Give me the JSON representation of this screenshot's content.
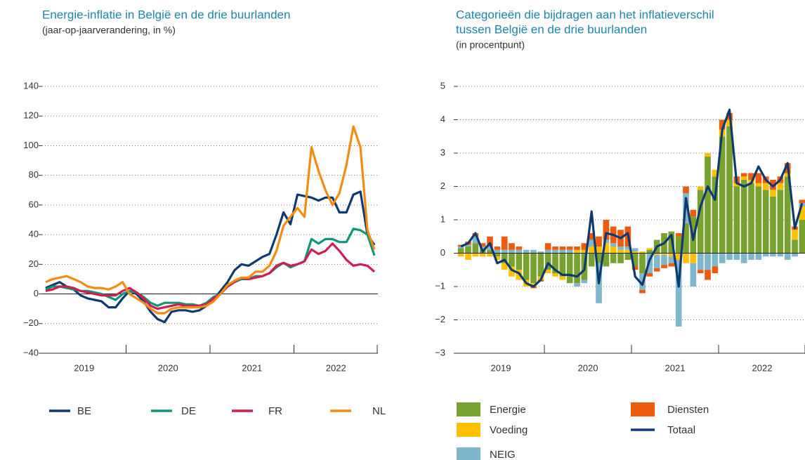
{
  "chart_data": [
    {
      "type": "line",
      "title": [
        "Energie-inflatie in België en de drie buurlanden"
      ],
      "subtitle": "(jaar-op-jaarverandering, in %)",
      "categories": [
        null,
        null,
        null,
        null,
        null,
        null,
        "2019",
        null,
        null,
        null,
        null,
        null,
        null,
        null,
        null,
        null,
        null,
        null,
        "2020",
        null,
        null,
        null,
        null,
        null,
        null,
        null,
        null,
        null,
        null,
        null,
        "2021",
        null,
        null,
        null,
        null,
        null,
        null,
        null,
        null,
        null,
        null,
        null,
        "2022",
        null,
        null,
        null,
        null,
        null
      ],
      "series": [
        {
          "name": "BE",
          "color": "#0e3a70",
          "values": [
            4,
            6,
            8,
            5,
            3,
            -1,
            -3,
            -4,
            -5,
            -9,
            -9,
            -3,
            2,
            0,
            -5,
            -12,
            -17,
            -19,
            -12,
            -11,
            -11,
            -12,
            -11,
            -8,
            -4,
            2,
            8,
            16,
            20,
            19,
            22,
            25,
            27,
            40,
            55,
            47,
            67,
            66,
            65,
            63,
            65,
            65,
            55,
            55,
            67,
            69,
            40,
            33
          ]
        },
        {
          "name": "DE",
          "color": "#109579",
          "values": [
            3,
            5,
            5,
            4,
            3,
            2,
            2,
            1,
            0,
            -2,
            -4,
            0,
            2,
            1,
            -2,
            -6,
            -8,
            -6,
            -6,
            -6,
            -7,
            -7,
            -8,
            -6,
            -2,
            0,
            5,
            8,
            10,
            10,
            12,
            12,
            14,
            18,
            21,
            18,
            20,
            22,
            37,
            34,
            37,
            37,
            35,
            35,
            44,
            43,
            40,
            26
          ]
        },
        {
          "name": "FR",
          "color": "#d01e4f",
          "values": [
            2,
            3,
            5,
            5,
            4,
            2,
            1,
            0,
            -1,
            -1,
            -1,
            2,
            4,
            1,
            -3,
            -8,
            -10,
            -9,
            -8,
            -7,
            -8,
            -8,
            -8,
            -7,
            -3,
            0,
            5,
            8,
            11,
            10,
            11,
            12,
            14,
            19,
            21,
            19,
            20,
            22,
            30,
            27,
            29,
            34,
            29,
            23,
            19,
            20,
            19,
            15
          ]
        },
        {
          "name": "NL",
          "color": "#f28c12",
          "values": [
            8,
            10,
            11,
            12,
            10,
            8,
            5,
            4,
            4,
            3,
            5,
            8,
            0,
            -3,
            -6,
            -10,
            -13,
            -13,
            -10,
            -9,
            -9,
            -9,
            -9,
            -8,
            -5,
            0,
            6,
            9,
            11,
            11,
            15,
            15,
            19,
            29,
            46,
            52,
            58,
            52,
            99,
            83,
            70,
            60,
            68,
            87,
            113,
            99,
            43,
            30
          ]
        }
      ],
      "ylim": [
        -40,
        140
      ],
      "yticks": [
        {
          "value": -40,
          "label": "−40"
        },
        {
          "value": -20,
          "label": "−20"
        },
        0,
        20,
        40,
        60,
        80,
        100,
        120,
        140
      ],
      "grid": true,
      "legend": "bottom"
    },
    {
      "type": "bar",
      "title": [
        "Categorieën die bijdragen aan het inflatieverschil",
        "tussen België en de drie buurlanden"
      ],
      "subtitle": "(in procentpunt)",
      "stacked": true,
      "categories": [
        null,
        null,
        null,
        null,
        null,
        null,
        "2019",
        null,
        null,
        null,
        null,
        null,
        null,
        null,
        null,
        null,
        null,
        null,
        "2020",
        null,
        null,
        null,
        null,
        null,
        null,
        null,
        null,
        null,
        null,
        null,
        "2021",
        null,
        null,
        null,
        null,
        null,
        null,
        null,
        null,
        null,
        null,
        null,
        "2022",
        null,
        null,
        null,
        null,
        null
      ],
      "series": [
        {
          "name": "Energie",
          "color": "#78a22f",
          "values": [
            0.15,
            0.2,
            0.3,
            0.1,
            0.1,
            -0.1,
            -0.3,
            -0.4,
            -0.5,
            -0.8,
            -0.9,
            -0.7,
            -0.5,
            -0.6,
            -0.7,
            -0.9,
            -0.9,
            -0.8,
            -0.4,
            -0.3,
            -0.4,
            -0.3,
            -0.3,
            -0.2,
            -0.4,
            -0.6,
            0.1,
            0.4,
            0.6,
            0.65,
            0.5,
            0.9,
            1.1,
            1.9,
            2.9,
            2.3,
            3.5,
            3.8,
            2.0,
            2.2,
            2.1,
            2.0,
            1.9,
            1.7,
            1.9,
            2.3,
            0.4,
            1.0
          ]
        },
        {
          "name": "Voeding",
          "color": "#ffc000",
          "values": [
            -0.1,
            -0.2,
            -0.1,
            -0.1,
            -0.1,
            -0.1,
            -0.2,
            -0.3,
            -0.3,
            -0.2,
            -0.1,
            -0.1,
            -0.1,
            -0.1,
            -0.1,
            0,
            0.1,
            0.1,
            0.2,
            0.2,
            0.3,
            0.2,
            0.1,
            0.1,
            0.05,
            0.05,
            0.05,
            -0.05,
            -0.05,
            -0.1,
            -0.2,
            -0.3,
            -0.3,
            0.1,
            0.1,
            0.2,
            0.2,
            0.2,
            0.1,
            0.1,
            0.1,
            0.1,
            0.2,
            0.2,
            0.2,
            0.1,
            0.3,
            0.4
          ]
        },
        {
          "name": "NEIG",
          "color": "#7fb8cc",
          "values": [
            0.05,
            0.05,
            0.2,
            0.1,
            0.1,
            0.1,
            0.1,
            0.1,
            0.1,
            0.1,
            0.1,
            0.05,
            0.1,
            0.1,
            0.1,
            0.1,
            -0.1,
            -0.1,
            0.2,
            -1.2,
            0.1,
            0.1,
            0.1,
            0.1,
            0.1,
            -0.5,
            -0.6,
            -0.4,
            -0.3,
            -0.2,
            -2.0,
            0.9,
            -0.7,
            -0.5,
            -0.5,
            -0.4,
            -0.3,
            -0.2,
            -0.2,
            -0.3,
            -0.2,
            -0.2,
            -0.1,
            -0.1,
            -0.1,
            -0.2,
            -0.1,
            0.1
          ]
        },
        {
          "name": "Diensten",
          "color": "#ee5a0e",
          "values": [
            0.05,
            0.1,
            0.1,
            0.1,
            0.3,
            0.1,
            0.4,
            0.2,
            0.1,
            0,
            -0.05,
            -0.05,
            0.2,
            0.1,
            0.1,
            0.1,
            0.1,
            0.2,
            0.2,
            0.3,
            0.6,
            0.5,
            0.5,
            0.6,
            -0.1,
            -0.1,
            -0.1,
            -0.1,
            -0.1,
            -0.1,
            0.1,
            0.2,
            0.2,
            -0.1,
            -0.3,
            -0.2,
            0.3,
            0.2,
            0.2,
            0.1,
            0.2,
            0.3,
            0.2,
            0.3,
            0.2,
            0.3,
            0.1,
            0.1
          ]
        },
        {
          "name": "Totaal",
          "color": "#0e3a70",
          "type": "line",
          "values": [
            0.2,
            0.3,
            0.6,
            0.05,
            0.3,
            -0.3,
            -0.2,
            -0.5,
            -0.6,
            -0.9,
            -1.0,
            -0.8,
            -0.3,
            -0.5,
            -0.65,
            -0.65,
            -0.7,
            -0.5,
            1.25,
            -0.9,
            0.6,
            0.55,
            0.45,
            0.6,
            -0.7,
            -0.95,
            -0.2,
            0.2,
            0.3,
            0.55,
            -1.0,
            1.65,
            0.4,
            1.4,
            2.0,
            1.6,
            3.7,
            4.3,
            2.1,
            2.0,
            2.1,
            2.6,
            2.2,
            2.0,
            2.2,
            2.7,
            0.75,
            1.5
          ]
        }
      ],
      "ylim": [
        -3,
        5
      ],
      "yticks": [
        {
          "value": -3,
          "label": "−3"
        },
        {
          "value": -2,
          "label": "−2"
        },
        {
          "value": -1,
          "label": "−1"
        },
        0,
        1,
        2,
        3,
        4,
        5
      ],
      "grid": true,
      "legend": "bottom"
    }
  ]
}
